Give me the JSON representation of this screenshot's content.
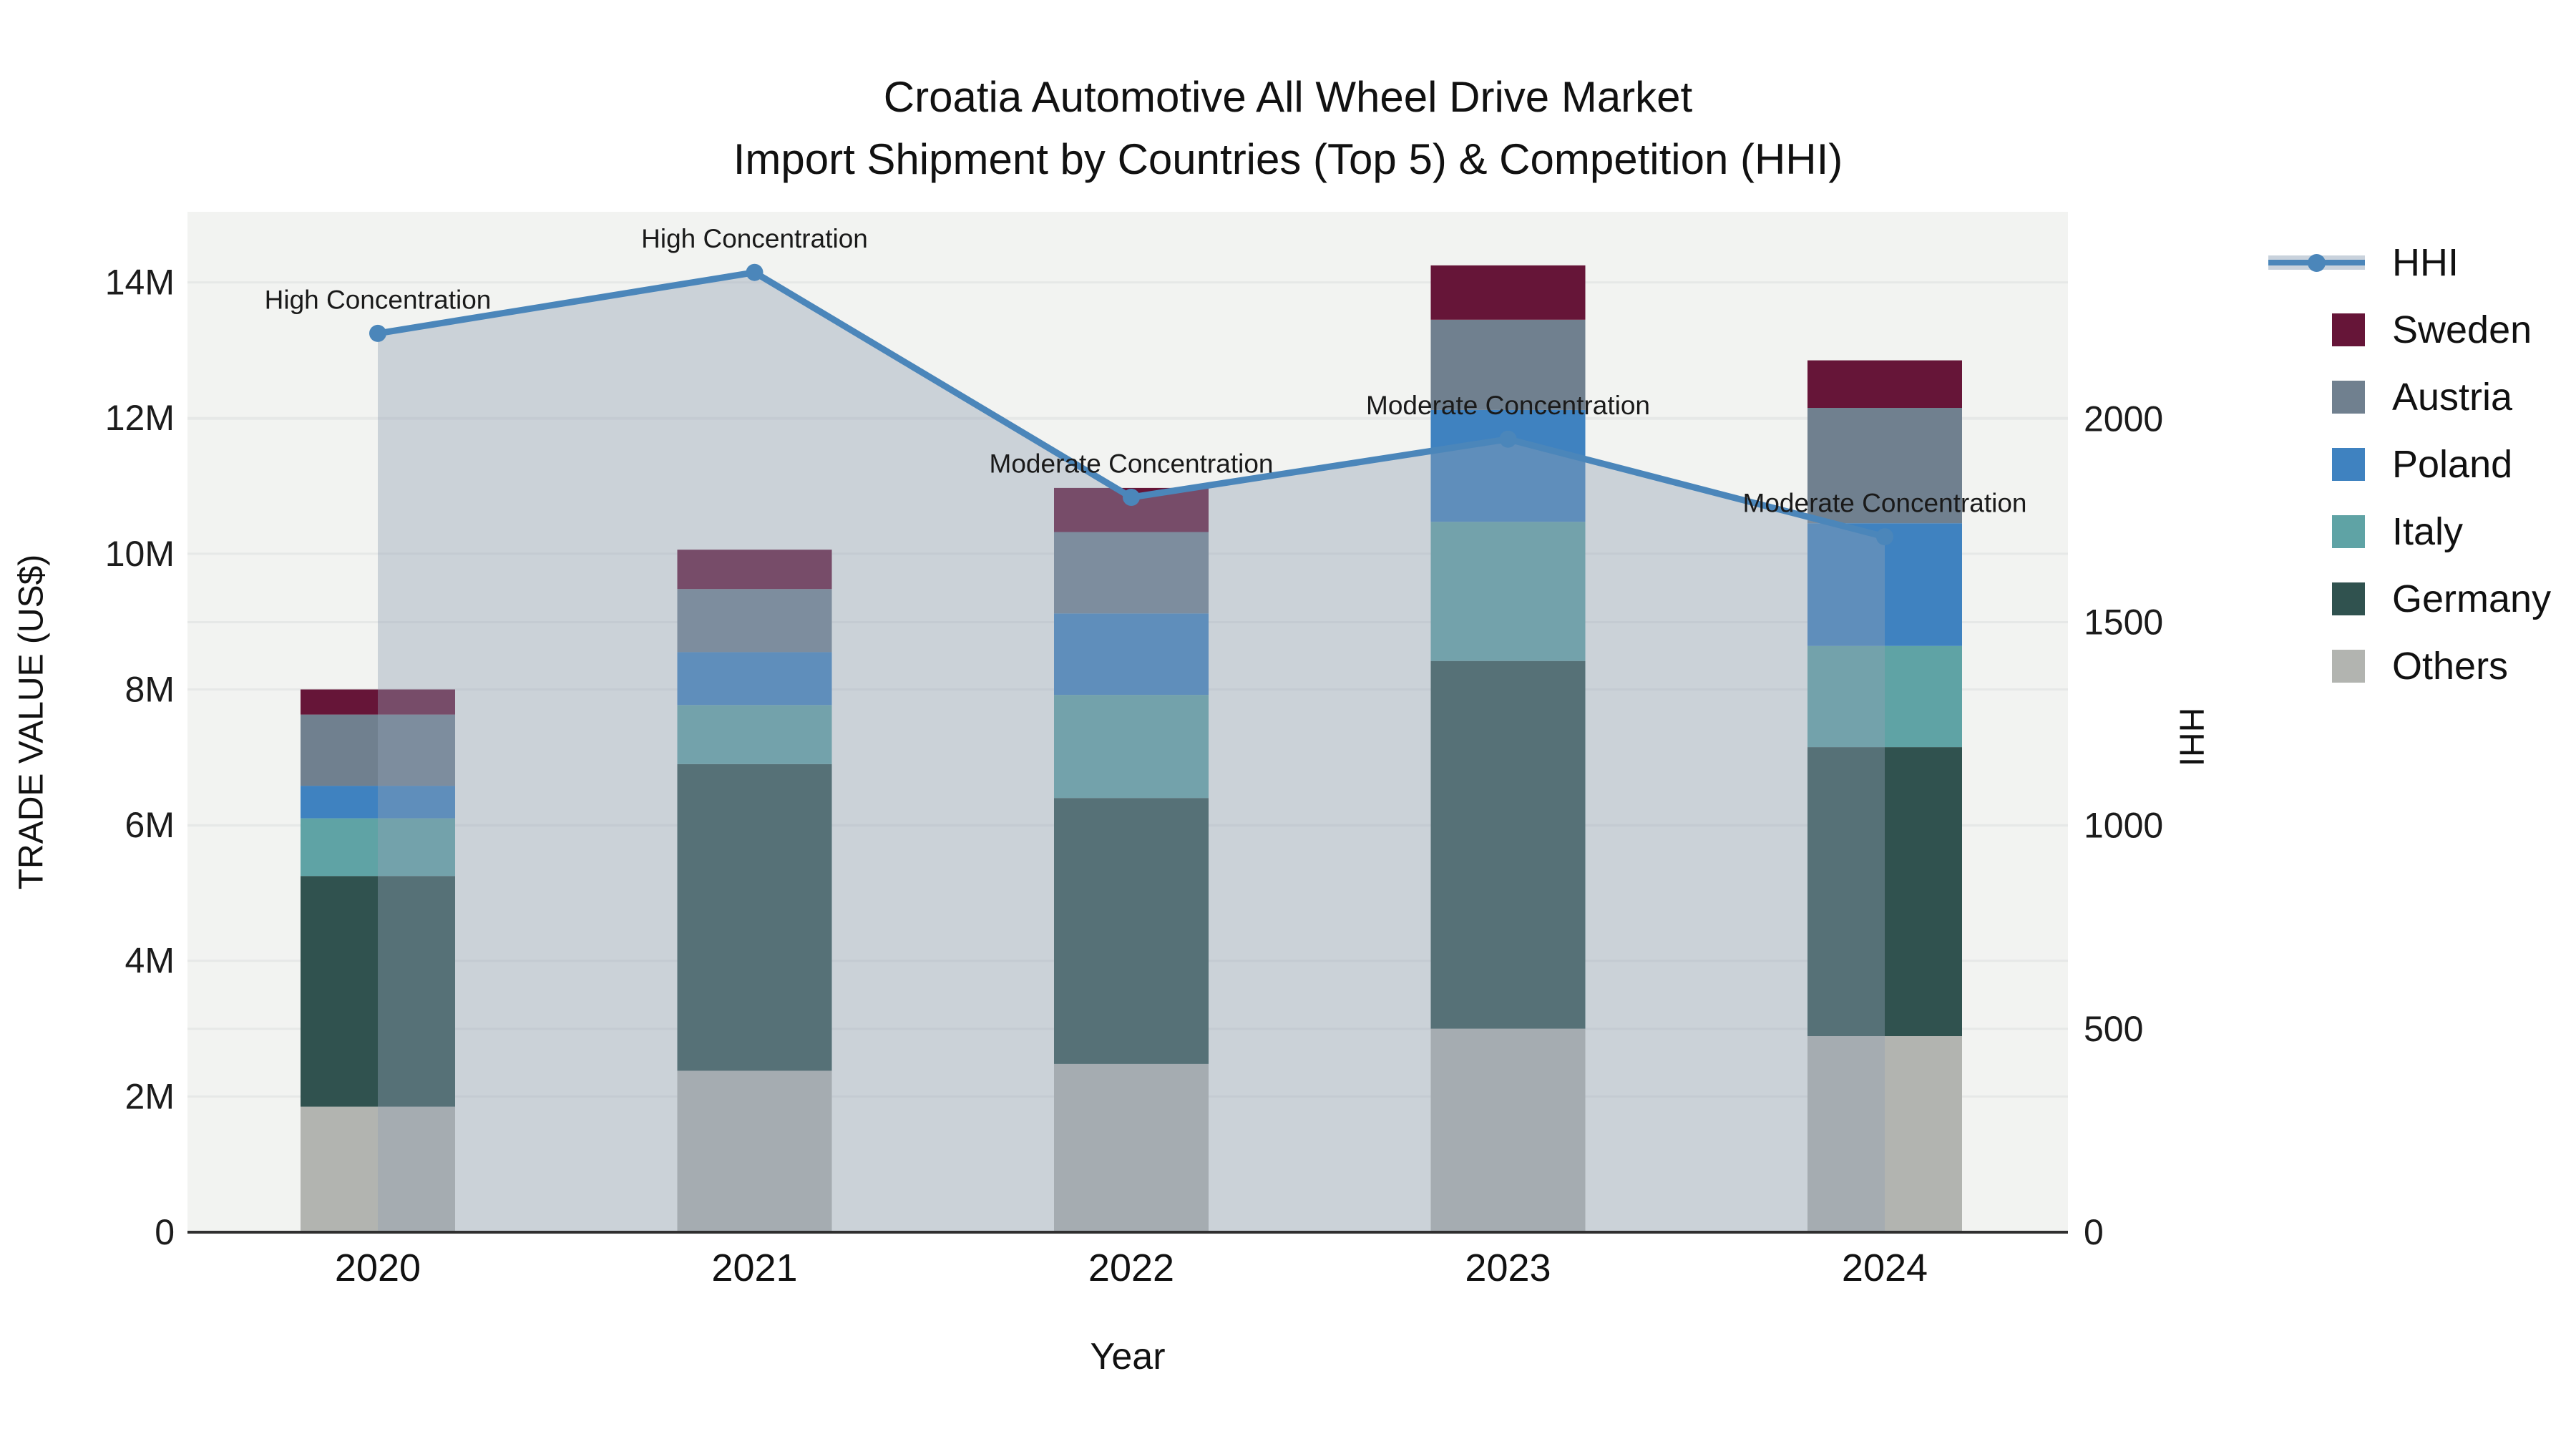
{
  "title": {
    "line1": "Croatia Automotive All Wheel Drive Market",
    "line2": "Import Shipment by Countries (Top 5) & Competition (HHI)"
  },
  "axes": {
    "left": {
      "label": "TRADE VALUE (US$)",
      "ticks": [
        "0",
        "2M",
        "4M",
        "6M",
        "8M",
        "10M",
        "12M",
        "14M"
      ],
      "tick_values": [
        0,
        2000000,
        4000000,
        6000000,
        8000000,
        10000000,
        12000000,
        14000000
      ],
      "max": 15040000
    },
    "right": {
      "label": "HHI",
      "ticks": [
        "0",
        "500",
        "1000",
        "1500",
        "2000"
      ],
      "tick_values": [
        0,
        500,
        1000,
        1500,
        2000
      ],
      "max": 2509
    },
    "x": {
      "label": "Year"
    }
  },
  "chart_data": {
    "type": "bar",
    "subtype": "stacked bars (left axis) + line with area fill (right axis)",
    "title": "Croatia Automotive All Wheel Drive Market — Import Shipment by Countries (Top 5) & Competition (HHI)",
    "xlabel": "Year",
    "ylabel_left": "TRADE VALUE (US$)",
    "ylabel_right": "HHI",
    "ylim_left": [
      0,
      15040000
    ],
    "ylim_right": [
      0,
      2509
    ],
    "grid": true,
    "legend_position": "right",
    "categories": [
      "2020",
      "2021",
      "2022",
      "2023",
      "2024"
    ],
    "series": [
      {
        "name": "Others",
        "color": "#b2b4b0",
        "values": [
          1850000,
          2380000,
          2480000,
          3000000,
          2890000
        ]
      },
      {
        "name": "Germany",
        "color": "#30524f",
        "values": [
          3400000,
          4520000,
          3920000,
          5420000,
          4260000
        ]
      },
      {
        "name": "Italy",
        "color": "#5fa3a5",
        "values": [
          850000,
          870000,
          1520000,
          2050000,
          1490000
        ]
      },
      {
        "name": "Poland",
        "color": "#3f82c0",
        "values": [
          480000,
          780000,
          1200000,
          1650000,
          1810000
        ]
      },
      {
        "name": "Austria",
        "color": "#70808f",
        "values": [
          1050000,
          930000,
          1200000,
          1330000,
          1700000
        ]
      },
      {
        "name": "Sweden",
        "color": "#661538",
        "values": [
          370000,
          580000,
          650000,
          800000,
          700000
        ]
      }
    ],
    "bar_totals": [
      8000000,
      10060000,
      10970000,
      14250000,
      12850000
    ],
    "line_series": {
      "name": "HHI",
      "color": "#4b86ba",
      "fill_color": "rgba(145,160,180,0.40)",
      "values": [
        2210,
        2360,
        1807,
        1950,
        1710
      ]
    },
    "annotations": [
      "High Concentration",
      "High Concentration",
      "Moderate Concentration",
      "Moderate Concentration",
      "Moderate Concentration"
    ],
    "plot_background": "#f2f3f1",
    "grid_color": "#e6e8e7"
  },
  "legend": {
    "items": [
      {
        "label": "HHI",
        "type": "line"
      },
      {
        "label": "Sweden",
        "type": "swatch"
      },
      {
        "label": "Austria",
        "type": "swatch"
      },
      {
        "label": "Poland",
        "type": "swatch"
      },
      {
        "label": "Italy",
        "type": "swatch"
      },
      {
        "label": "Germany",
        "type": "swatch"
      },
      {
        "label": "Others",
        "type": "swatch"
      }
    ]
  }
}
